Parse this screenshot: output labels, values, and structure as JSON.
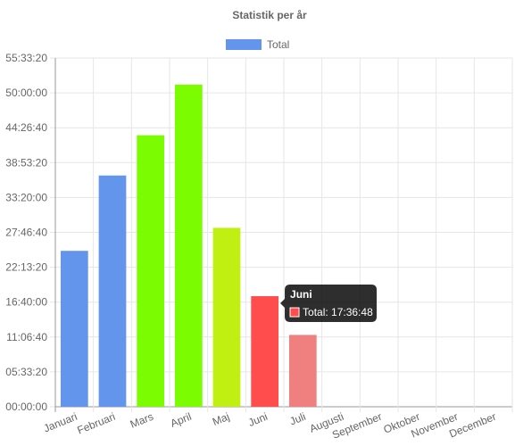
{
  "chart_data": {
    "type": "bar",
    "title": "Statistik per år",
    "legend": {
      "position": "top",
      "entries": [
        {
          "label": "Total",
          "color": "#6495ED"
        }
      ]
    },
    "categories": [
      "Januari",
      "Februari",
      "Mars",
      "April",
      "Maj",
      "Juni",
      "Juli",
      "Augusti",
      "September",
      "Oktober",
      "November",
      "December"
    ],
    "series": [
      {
        "name": "Total",
        "values_seconds": [
          89400,
          132600,
          155700,
          184700,
          102600,
          63408,
          41200,
          0,
          0,
          0,
          0,
          0
        ],
        "colors": [
          "#6495ED",
          "#6495ED",
          "#7CFC00",
          "#7CFC00",
          "#BFF011",
          "#FF4C4C",
          "#F08080",
          "#cccccc",
          "#cccccc",
          "#cccccc",
          "#cccccc",
          "#cccccc"
        ]
      }
    ],
    "y_axis": {
      "ylim_seconds": [
        0,
        200000
      ],
      "tick_values_seconds": [
        0,
        20000,
        40000,
        60000,
        80000,
        100000,
        120000,
        140000,
        160000,
        180000,
        200000
      ],
      "tick_labels": [
        "00:00:00",
        "05:33:20",
        "11:06:40",
        "16:40:00",
        "22:13:20",
        "27:46:40",
        "33:20:00",
        "38:53:20",
        "44:26:40",
        "50:00:00",
        "55:33:20"
      ]
    },
    "grid": true,
    "tooltip": {
      "category_index": 5,
      "title": "Juni",
      "body": "Total: 17:36:48",
      "swatch_color": "#FF4C4C"
    }
  }
}
